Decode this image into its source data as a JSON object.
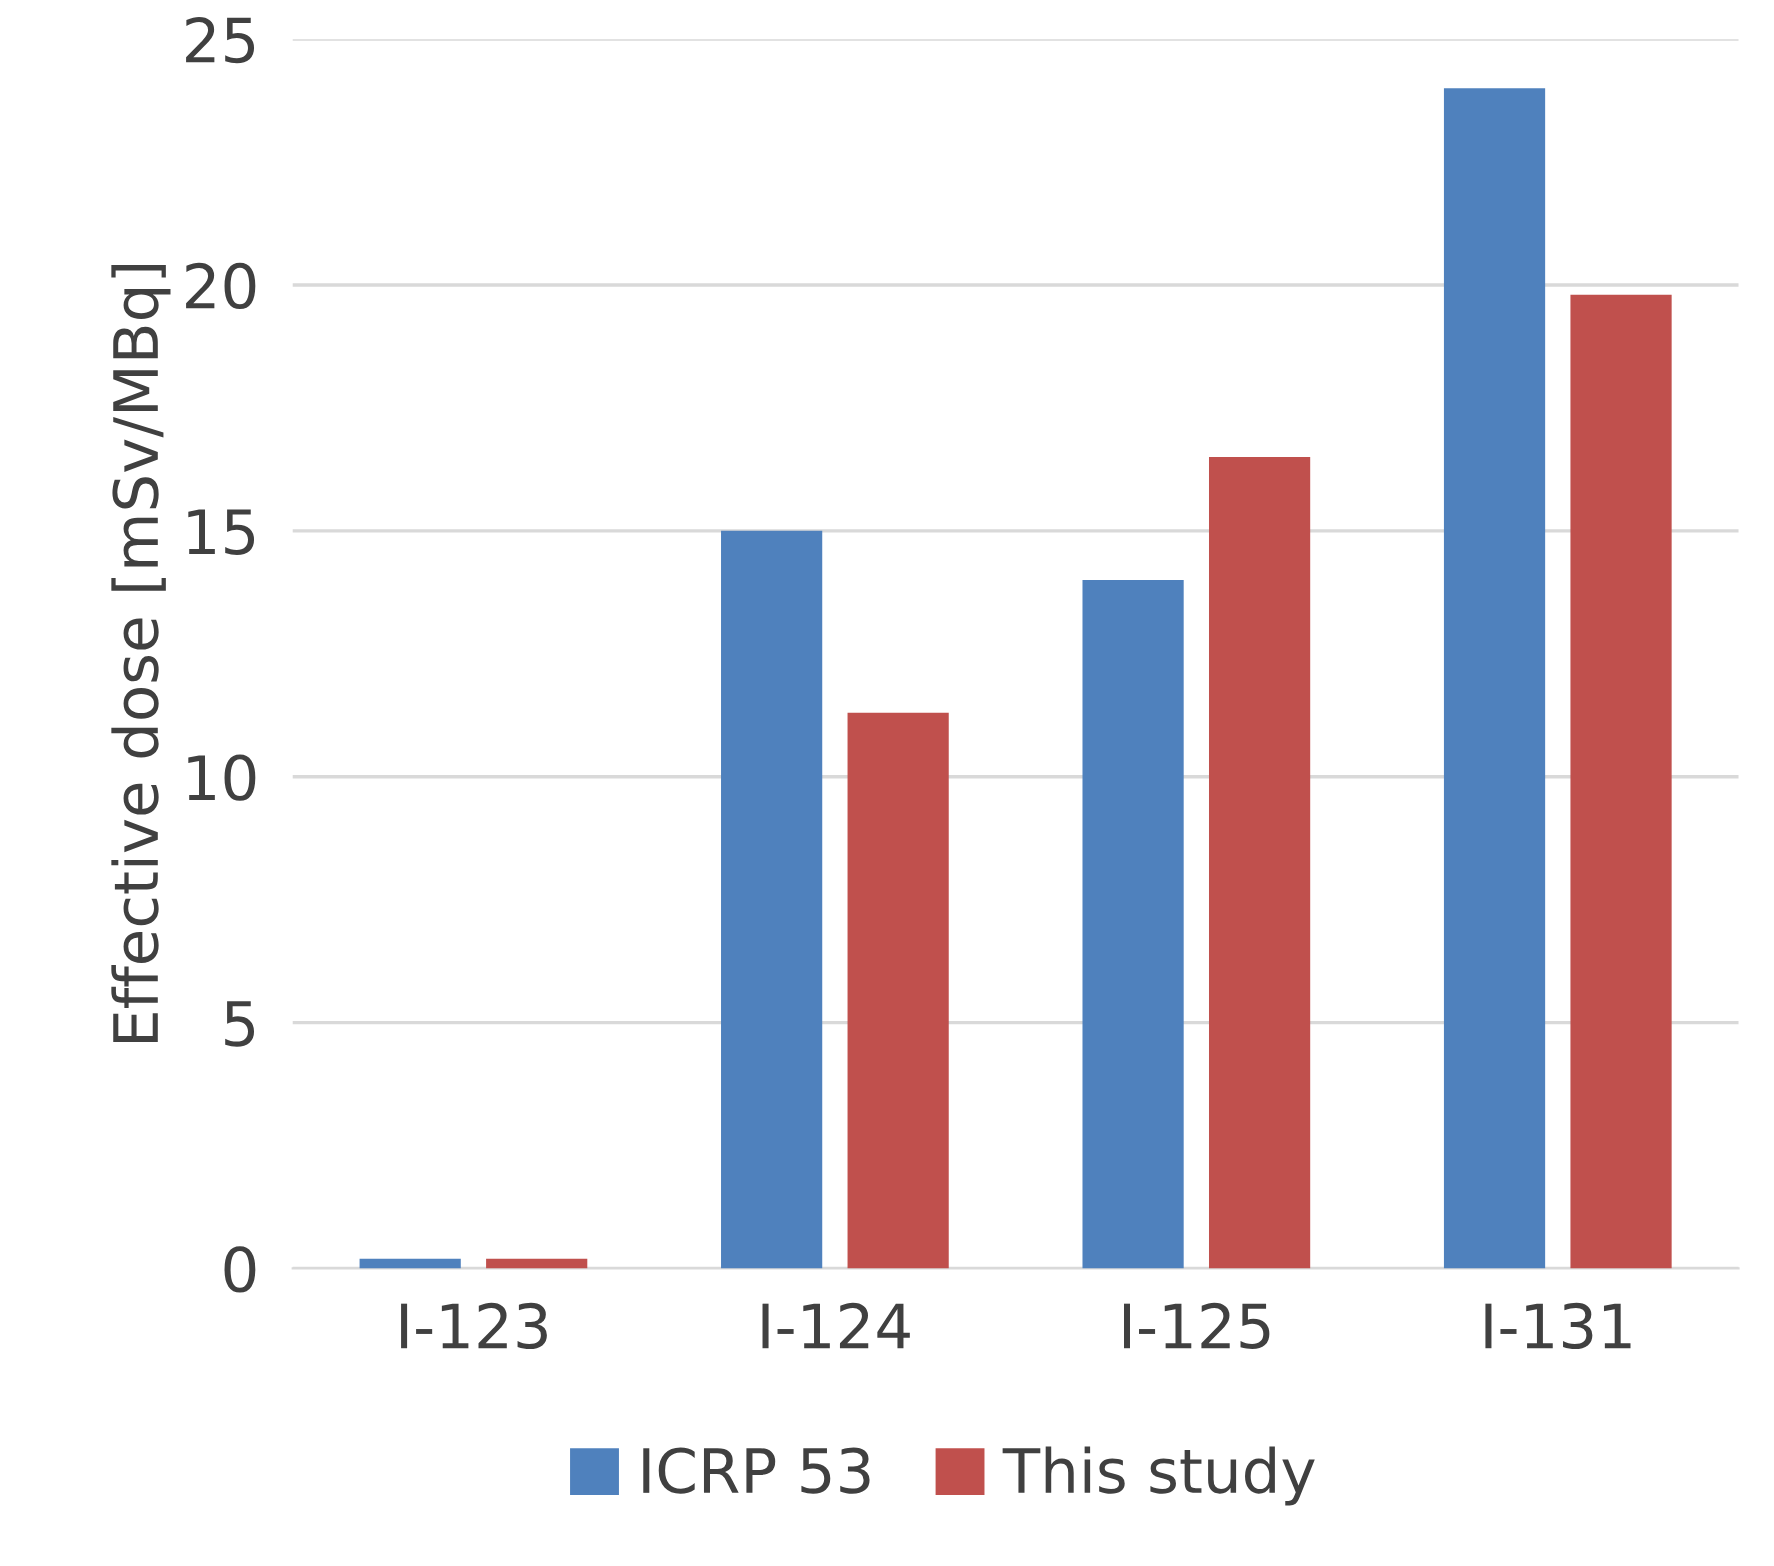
{
  "chart_data": {
    "type": "bar",
    "ylabel": "Effective dose [mSv/MBq]",
    "categories": [
      "I-123",
      "I-124",
      "I-125",
      "I-131"
    ],
    "series": [
      {
        "name": "ICRP 53",
        "color": "#4f81bd",
        "values": [
          0.2,
          15.0,
          14.0,
          24.0
        ]
      },
      {
        "name": "This study",
        "color": "#c0504d",
        "values": [
          0.2,
          11.3,
          16.5,
          19.8
        ]
      }
    ],
    "ylim": [
      0,
      25
    ],
    "yticks": [
      0,
      5,
      10,
      15,
      20,
      25
    ],
    "grid": "y",
    "legend": "bottom"
  }
}
